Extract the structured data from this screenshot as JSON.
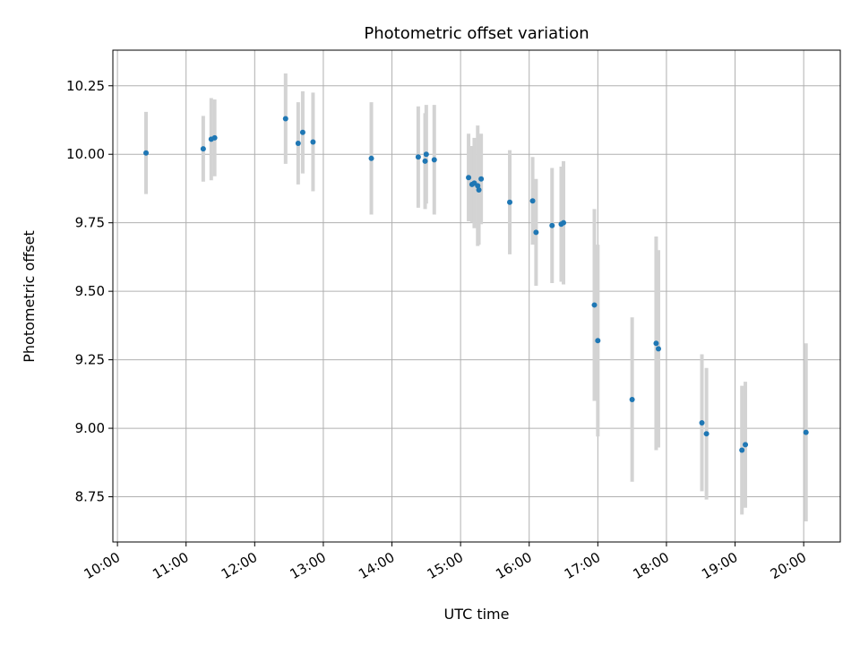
{
  "chart_data": {
    "type": "scatter",
    "title": "Photometric offset variation",
    "xlabel": "UTC time",
    "ylabel": "Photometric offset",
    "x_ticks": [
      "10:00",
      "11:00",
      "12:00",
      "13:00",
      "14:00",
      "15:00",
      "16:00",
      "17:00",
      "18:00",
      "19:00",
      "20:00"
    ],
    "y_ticks": [
      "8.75",
      "9.00",
      "9.25",
      "9.50",
      "9.75",
      "10.00",
      "10.25"
    ],
    "xlim": [
      "09:56",
      "20:32"
    ],
    "ylim": [
      8.585,
      10.38
    ],
    "grid": true,
    "colors": {
      "point": "#1f77b4",
      "errorbar": "#d3d3d3",
      "grid": "#b0b0b0"
    },
    "points": [
      {
        "t": "10:25",
        "y": 10.005,
        "err": 0.15
      },
      {
        "t": "11:15",
        "y": 10.02,
        "err": 0.12
      },
      {
        "t": "11:22",
        "y": 10.055,
        "err": 0.15
      },
      {
        "t": "11:25",
        "y": 10.06,
        "err": 0.14
      },
      {
        "t": "12:27",
        "y": 10.13,
        "err": 0.165
      },
      {
        "t": "12:38",
        "y": 10.04,
        "err": 0.15
      },
      {
        "t": "12:42",
        "y": 10.08,
        "err": 0.15
      },
      {
        "t": "12:51",
        "y": 10.045,
        "err": 0.18
      },
      {
        "t": "13:42",
        "y": 9.985,
        "err": 0.205
      },
      {
        "t": "14:23",
        "y": 9.99,
        "err": 0.185
      },
      {
        "t": "14:29",
        "y": 9.975,
        "err": 0.175
      },
      {
        "t": "14:30",
        "y": 10.0,
        "err": 0.18
      },
      {
        "t": "14:37",
        "y": 9.98,
        "err": 0.2
      },
      {
        "t": "15:07",
        "y": 9.915,
        "err": 0.16
      },
      {
        "t": "15:10",
        "y": 9.89,
        "err": 0.14
      },
      {
        "t": "15:12",
        "y": 9.895,
        "err": 0.165
      },
      {
        "t": "15:15",
        "y": 9.885,
        "err": 0.22
      },
      {
        "t": "15:16",
        "y": 9.87,
        "err": 0.2
      },
      {
        "t": "15:18",
        "y": 9.91,
        "err": 0.165
      },
      {
        "t": "15:43",
        "y": 9.825,
        "err": 0.19
      },
      {
        "t": "16:03",
        "y": 9.83,
        "err": 0.16
      },
      {
        "t": "16:06",
        "y": 9.715,
        "err": 0.195
      },
      {
        "t": "16:20",
        "y": 9.74,
        "err": 0.21
      },
      {
        "t": "16:28",
        "y": 9.745,
        "err": 0.21
      },
      {
        "t": "16:30",
        "y": 9.75,
        "err": 0.225
      },
      {
        "t": "16:57",
        "y": 9.45,
        "err": 0.35
      },
      {
        "t": "17:00",
        "y": 9.32,
        "err": 0.35
      },
      {
        "t": "17:30",
        "y": 9.105,
        "err": 0.3
      },
      {
        "t": "17:51",
        "y": 9.31,
        "err": 0.39
      },
      {
        "t": "17:53",
        "y": 9.29,
        "err": 0.36
      },
      {
        "t": "18:31",
        "y": 9.02,
        "err": 0.25
      },
      {
        "t": "18:35",
        "y": 8.98,
        "err": 0.24
      },
      {
        "t": "19:06",
        "y": 8.92,
        "err": 0.235
      },
      {
        "t": "19:09",
        "y": 8.94,
        "err": 0.23
      },
      {
        "t": "20:02",
        "y": 8.985,
        "err": 0.325
      }
    ]
  }
}
